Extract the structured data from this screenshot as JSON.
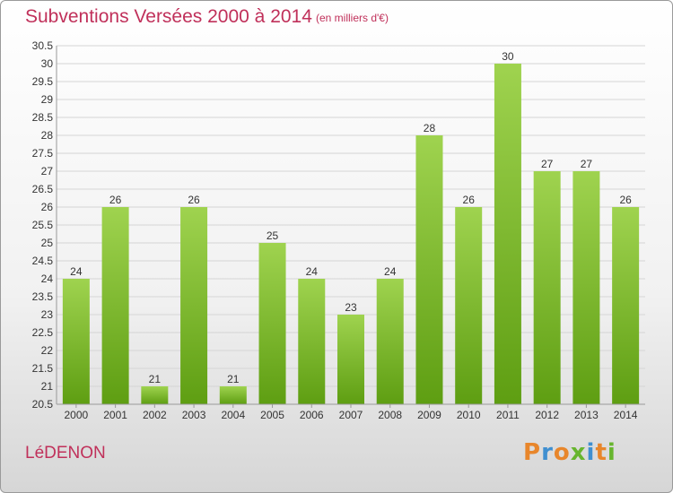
{
  "header": {
    "title": "Subventions Versées 2000 à 2014",
    "subtitle": "(en milliers d'€)"
  },
  "footer": {
    "place": "LéDENON",
    "logo": "Proxiti",
    "logo_colors": [
      "#e8862b",
      "#3f8fd0",
      "#e8862b",
      "#67b52e",
      "#3f8fd0",
      "#e8862b",
      "#67b52e"
    ]
  },
  "colors": {
    "accent": "#c0305a",
    "bar_top": "#9fd34f",
    "bar_bottom": "#5e9e12",
    "grid": "#d5d5d5"
  },
  "chart_data": {
    "type": "bar",
    "title": "Subventions Versées 2000 à 2014",
    "subtitle": "(en milliers d'€)",
    "categories": [
      "2000",
      "2001",
      "2002",
      "2003",
      "2004",
      "2005",
      "2006",
      "2007",
      "2008",
      "2009",
      "2010",
      "2011",
      "2012",
      "2013",
      "2014"
    ],
    "values": [
      24,
      26,
      21,
      26,
      21,
      25,
      24,
      23,
      24,
      28,
      26,
      30,
      27,
      27,
      26
    ],
    "ylim": [
      20.5,
      30.5
    ],
    "yticks": [
      "20.5",
      "21",
      "21.5",
      "22",
      "22.5",
      "23",
      "23.5",
      "24",
      "24.5",
      "25",
      "25.5",
      "26",
      "26.5",
      "27",
      "27.5",
      "28",
      "28.5",
      "29",
      "29.5",
      "30",
      "30.5"
    ],
    "grid": true,
    "xlabel": "",
    "ylabel": ""
  }
}
